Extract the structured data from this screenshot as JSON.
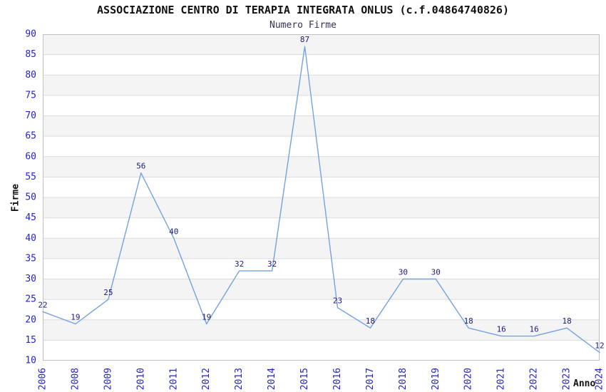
{
  "chart_data": {
    "type": "line",
    "title": "ASSOCIAZIONE CENTRO DI TERAPIA INTEGRATA ONLUS (c.f.04864740826)",
    "subtitle": "Numero Firme",
    "xlabel": "Anno",
    "ylabel": "Firme",
    "categories": [
      "2006",
      "2008",
      "2009",
      "2010",
      "2011",
      "2012",
      "2013",
      "2014",
      "2015",
      "2016",
      "2017",
      "2018",
      "2019",
      "2020",
      "2021",
      "2022",
      "2023",
      "2024"
    ],
    "values": [
      22,
      19,
      25,
      56,
      40,
      19,
      32,
      32,
      87,
      23,
      18,
      30,
      30,
      18,
      16,
      16,
      18,
      12
    ],
    "ylim": [
      10,
      90
    ],
    "ytick_step": 5,
    "grid": true,
    "show_data_labels": true,
    "legend_position": "none",
    "colors": {
      "line": "#73a2e0",
      "tick_label": "#2323cc",
      "data_label": "#1c1c78",
      "band": "#f4f4f4",
      "band_alt": "#ffffff",
      "gridline": "#dcdcdc",
      "plot_border": "#c0c0c0",
      "background": "#ffffff"
    }
  }
}
